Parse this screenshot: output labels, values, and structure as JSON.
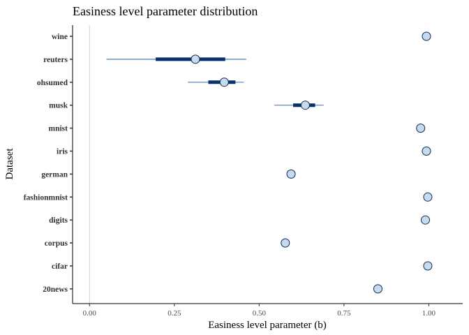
{
  "chart_data": {
    "type": "scatter",
    "title": "Easiness level parameter distribution",
    "xlabel": "Easiness level parameter (b)",
    "ylabel": "Dataset",
    "xlim": [
      -0.05,
      1.1
    ],
    "xticks": [
      0.0,
      0.25,
      0.5,
      0.75,
      1.0
    ],
    "xtick_labels": [
      "0.00",
      "0.25",
      "0.50",
      "0.75",
      "1.00"
    ],
    "reference_line_x": 0.0,
    "grid": false,
    "categories": [
      "wine",
      "reuters",
      "ohsumed",
      "musk",
      "mnist",
      "iris",
      "german",
      "fashionmnist",
      "digits",
      "corpus",
      "cifar",
      "20news"
    ],
    "series": [
      {
        "points": [
          {
            "dataset": "wine",
            "median": 0.993,
            "inner": [
              0.993,
              0.993
            ],
            "outer": [
              0.993,
              0.993
            ]
          },
          {
            "dataset": "reuters",
            "median": 0.312,
            "inner": [
              0.195,
              0.4
            ],
            "outer": [
              0.05,
              0.462
            ]
          },
          {
            "dataset": "ohsumed",
            "median": 0.397,
            "inner": [
              0.35,
              0.43
            ],
            "outer": [
              0.29,
              0.455
            ]
          },
          {
            "dataset": "musk",
            "median": 0.636,
            "inner": [
              0.6,
              0.665
            ],
            "outer": [
              0.545,
              0.69
            ]
          },
          {
            "dataset": "mnist",
            "median": 0.976,
            "inner": [
              0.976,
              0.976
            ],
            "outer": [
              0.976,
              0.976
            ]
          },
          {
            "dataset": "iris",
            "median": 0.993,
            "inner": [
              0.993,
              0.993
            ],
            "outer": [
              0.993,
              0.993
            ]
          },
          {
            "dataset": "german",
            "median": 0.594,
            "inner": [
              0.594,
              0.594
            ],
            "outer": [
              0.594,
              0.594
            ]
          },
          {
            "dataset": "fashionmnist",
            "median": 0.997,
            "inner": [
              0.997,
              0.997
            ],
            "outer": [
              0.997,
              0.997
            ]
          },
          {
            "dataset": "digits",
            "median": 0.99,
            "inner": [
              0.99,
              0.99
            ],
            "outer": [
              0.99,
              0.99
            ]
          },
          {
            "dataset": "corpus",
            "median": 0.577,
            "inner": [
              0.577,
              0.577
            ],
            "outer": [
              0.577,
              0.577
            ]
          },
          {
            "dataset": "cifar",
            "median": 0.997,
            "inner": [
              0.997,
              0.997
            ],
            "outer": [
              0.997,
              0.997
            ]
          },
          {
            "dataset": "20news",
            "median": 0.85,
            "inner": [
              0.85,
              0.85
            ],
            "outer": [
              0.85,
              0.85
            ]
          }
        ]
      }
    ],
    "colors": {
      "outer_interval": "#4a7fb5",
      "inner_interval": "#08306b",
      "point_fill": "#c6dbef",
      "point_stroke": "#0a2a4d",
      "reference_line": "#d9d9d9",
      "axis": "#000000"
    }
  }
}
